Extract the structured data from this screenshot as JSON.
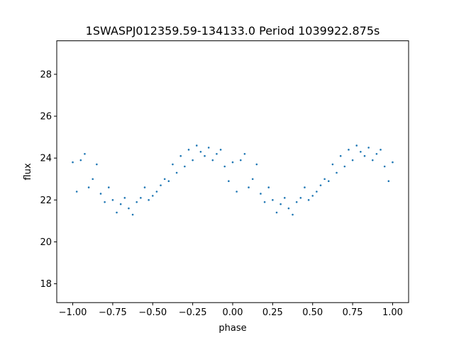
{
  "chart_data": {
    "type": "scatter",
    "title": "1SWASPJ012359.59-134133.0 Period 1039922.875s",
    "xlabel": "phase",
    "ylabel": "flux",
    "xlim": [
      -1.1,
      1.1
    ],
    "ylim": [
      17.1,
      29.6
    ],
    "xticks": [
      -1.0,
      -0.75,
      -0.5,
      -0.25,
      0.0,
      0.25,
      0.5,
      0.75,
      1.0
    ],
    "xtick_labels": [
      "−1.00",
      "−0.75",
      "−0.50",
      "−0.25",
      "0.00",
      "0.25",
      "0.50",
      "0.75",
      "1.00"
    ],
    "yticks": [
      18,
      20,
      22,
      24,
      26,
      28
    ],
    "ytick_labels": [
      "18",
      "20",
      "22",
      "24",
      "26",
      "28"
    ],
    "grid": false,
    "legend": "none",
    "marker_color": "#1f77b4",
    "series": [
      {
        "x": [
          -1.0,
          -0.975,
          -0.95,
          -0.925,
          -0.9,
          -0.875,
          -0.85,
          -0.825,
          -0.8,
          -0.775,
          -0.75,
          -0.725,
          -0.7,
          -0.675,
          -0.65,
          -0.625,
          -0.6,
          -0.575,
          -0.55,
          -0.525,
          -0.5,
          -0.475,
          -0.45,
          -0.425,
          -0.4,
          -0.375,
          -0.35,
          -0.325,
          -0.3,
          -0.275,
          -0.25,
          -0.225,
          -0.2,
          -0.175,
          -0.15,
          -0.125,
          -0.1,
          -0.075,
          -0.05,
          -0.025,
          0.0,
          0.025,
          0.05,
          0.075,
          0.1,
          0.125,
          0.15,
          0.175,
          0.2,
          0.225,
          0.25,
          0.275,
          0.3,
          0.325,
          0.35,
          0.375,
          0.4,
          0.425,
          0.45,
          0.475,
          0.5,
          0.525,
          0.55,
          0.575,
          0.6,
          0.625,
          0.65,
          0.675,
          0.7,
          0.725,
          0.75,
          0.775,
          0.8,
          0.825,
          0.85,
          0.875,
          0.9,
          0.925,
          0.95,
          0.975,
          1.0
        ],
        "y": [
          23.8,
          22.4,
          23.9,
          24.2,
          22.6,
          23.0,
          23.7,
          22.3,
          21.9,
          22.6,
          22.0,
          21.4,
          21.8,
          22.1,
          21.6,
          21.3,
          21.9,
          22.1,
          22.6,
          22.0,
          22.2,
          22.4,
          22.7,
          23.0,
          22.9,
          23.7,
          23.3,
          24.1,
          23.6,
          24.4,
          23.9,
          24.6,
          24.3,
          24.1,
          24.5,
          23.9,
          24.2,
          24.4,
          23.6,
          22.9,
          23.8,
          22.4,
          23.9,
          24.2,
          22.6,
          23.0,
          23.7,
          22.3,
          21.9,
          22.6,
          22.0,
          21.4,
          21.8,
          22.1,
          21.6,
          21.3,
          21.9,
          22.1,
          22.6,
          22.0,
          22.2,
          22.4,
          22.7,
          23.0,
          22.9,
          23.7,
          23.3,
          24.1,
          23.6,
          24.4,
          23.9,
          24.6,
          24.3,
          24.1,
          24.5,
          23.9,
          24.2,
          24.4,
          23.6,
          22.9,
          23.8
        ]
      }
    ]
  }
}
